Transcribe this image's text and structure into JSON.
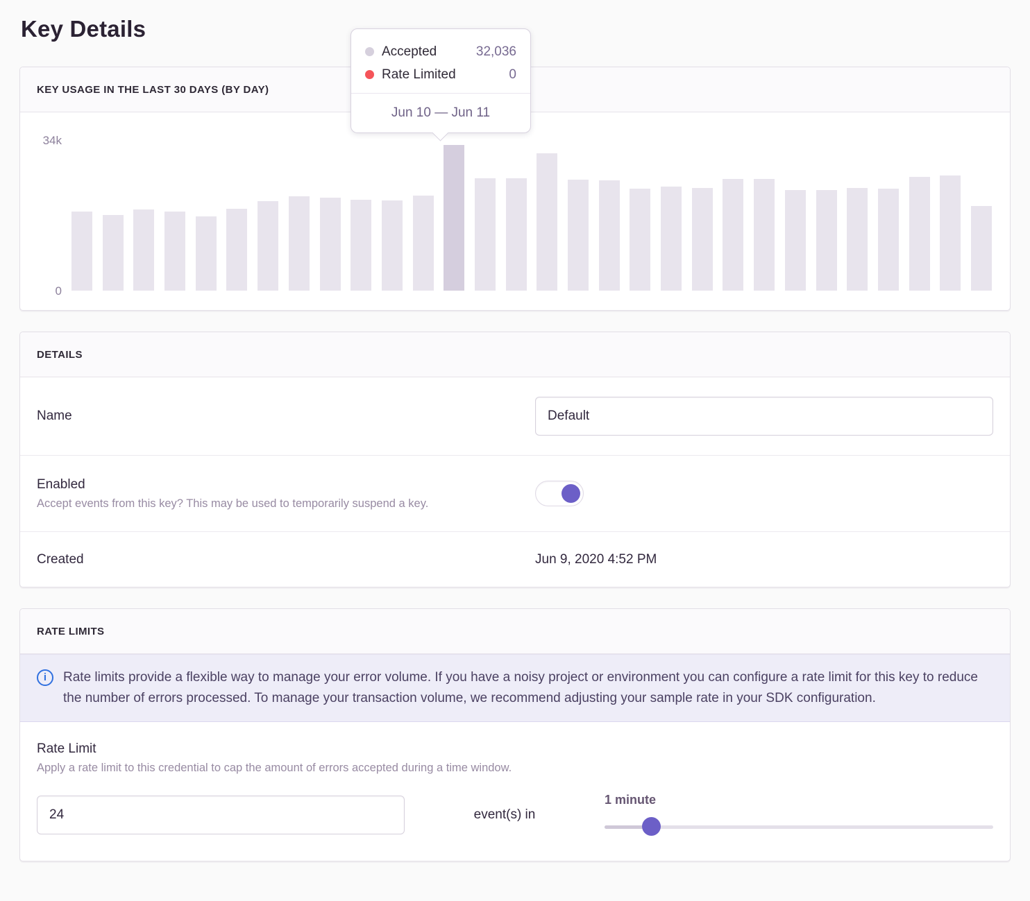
{
  "page": {
    "title": "Key Details"
  },
  "usage_panel": {
    "header": "KEY USAGE IN THE LAST 30 DAYS (BY DAY)"
  },
  "chart_data": {
    "type": "bar",
    "title": "KEY USAGE IN THE LAST 30 DAYS (BY DAY)",
    "ylim": [
      0,
      34000
    ],
    "ytick_labels": [
      "0",
      "34k"
    ],
    "grid": false,
    "legend_position": "tooltip-only",
    "bar_color": "#e8e4ed",
    "hovered_bar_color": "#d5cede",
    "hovered_index": 12,
    "series": [
      {
        "name": "Accepted",
        "values": [
          17400,
          16600,
          17800,
          17400,
          16300,
          18000,
          19700,
          20700,
          20400,
          20000,
          19800,
          20900,
          32036,
          24700,
          24700,
          30200,
          24400,
          24200,
          22400,
          22900,
          22600,
          24500,
          24500,
          22100,
          22100,
          22600,
          22400,
          25000,
          25300,
          18600
        ]
      },
      {
        "name": "Rate Limited",
        "values": [
          0,
          0,
          0,
          0,
          0,
          0,
          0,
          0,
          0,
          0,
          0,
          0,
          0,
          0,
          0,
          0,
          0,
          0,
          0,
          0,
          0,
          0,
          0,
          0,
          0,
          0,
          0,
          0,
          0,
          0
        ]
      }
    ],
    "tooltip": {
      "rows": [
        {
          "label": "Accepted",
          "value": "32,036",
          "dot_color": "#d6d0dd"
        },
        {
          "label": "Rate Limited",
          "value": "0",
          "dot_color": "#f55459"
        }
      ],
      "date_range": "Jun 10 — Jun 11"
    }
  },
  "details_panel": {
    "header": "DETAILS",
    "name": {
      "label": "Name",
      "value": "Default"
    },
    "enabled": {
      "label": "Enabled",
      "help": "Accept events from this key? This may be used to temporarily suspend a key.",
      "state": "on"
    },
    "created": {
      "label": "Created",
      "value": "Jun 9, 2020 4:52 PM"
    }
  },
  "rate_limits_panel": {
    "header": "RATE LIMITS",
    "alert_text": "Rate limits provide a flexible way to manage your error volume. If you have a noisy project or environment you can configure a rate limit for this key to reduce the number of errors processed. To manage your transaction volume, we recommend adjusting your sample rate in your SDK configuration.",
    "rate_limit": {
      "label": "Rate Limit",
      "help": "Apply a rate limit to this credential to cap the amount of errors accepted during a time window.",
      "count_value": "24",
      "between_label": "event(s) in",
      "window_label": "1 minute",
      "slider_percent": 12
    }
  },
  "colors": {
    "accent_purple": "#6c5fc7",
    "rate_limited_red": "#f55459",
    "accepted_dot_gray": "#d6d0dd",
    "info_blue": "#3070df",
    "alert_background": "#eeedf8",
    "bar_gray": "#e8e4ed",
    "hovered_bar": "#d5cede"
  }
}
